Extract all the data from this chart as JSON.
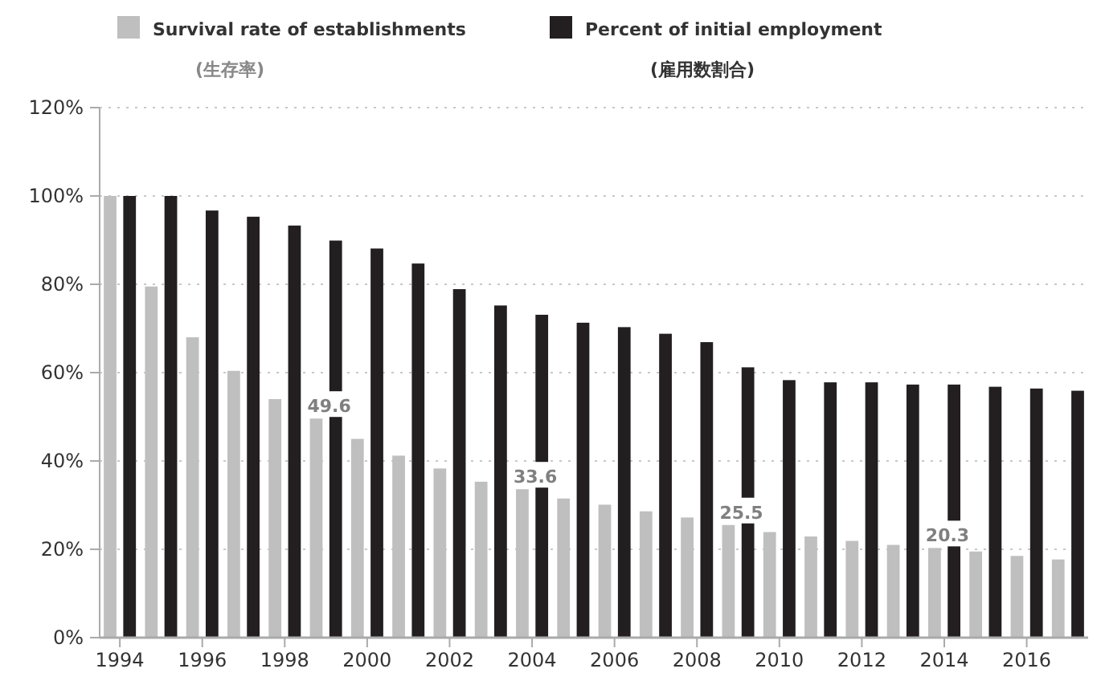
{
  "chart_data": {
    "type": "bar",
    "categories": [
      "1994",
      null,
      "1996",
      null,
      "1998",
      null,
      "2000",
      null,
      "2002",
      null,
      "2004",
      null,
      "2006",
      null,
      "2008",
      null,
      "2010",
      null,
      "2012",
      null,
      "2014",
      null,
      "2016",
      null
    ],
    "series": [
      {
        "name": "Survival rate of establishments",
        "color": "#bfbfbf",
        "values": [
          100,
          79.5,
          68,
          60.4,
          54,
          49.6,
          45,
          41.2,
          38.3,
          35.3,
          33.6,
          31.5,
          30.1,
          28.6,
          27.2,
          25.5,
          23.9,
          22.9,
          21.9,
          21,
          20.3,
          19.5,
          18.5,
          17.7
        ],
        "value_labels": [
          null,
          null,
          null,
          null,
          null,
          "49.6",
          null,
          null,
          null,
          null,
          "33.6",
          null,
          null,
          null,
          null,
          "25.5",
          null,
          null,
          null,
          null,
          "20.3",
          null,
          null,
          null
        ]
      },
      {
        "name": "Percent of initial employment",
        "color": "#231f20",
        "values": [
          100,
          100,
          96.7,
          95.3,
          93.3,
          89.9,
          88.1,
          84.7,
          78.9,
          75.2,
          73.1,
          71.3,
          70.3,
          68.8,
          66.9,
          61.2,
          58.3,
          57.8,
          57.8,
          57.3,
          57.3,
          56.8,
          56.4,
          55.9
        ]
      }
    ],
    "annotations": [
      "(生存率)",
      "(雇用数割合)"
    ],
    "ylim": [
      0,
      120
    ],
    "yticks": [
      {
        "value": 0,
        "label": "0%"
      },
      {
        "value": 20,
        "label": "20%"
      },
      {
        "value": 40,
        "label": "40%"
      },
      {
        "value": 60,
        "label": "60%"
      },
      {
        "value": 80,
        "label": "80%"
      },
      {
        "value": 100,
        "label": "100%"
      },
      {
        "value": 120,
        "label": "120%"
      }
    ],
    "grid": "y",
    "legend": "top"
  }
}
